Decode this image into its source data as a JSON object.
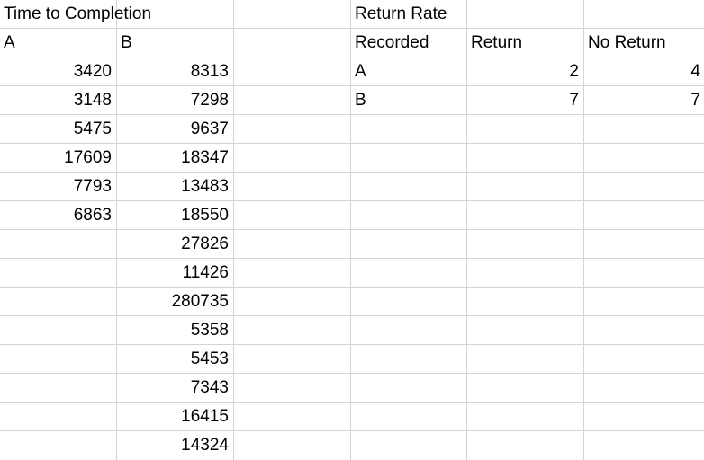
{
  "sheet": {
    "time": {
      "title": "Time to Completion",
      "col_a": "A",
      "col_b": "B",
      "a_values": [
        "3420",
        "3148",
        "5475",
        "17609",
        "7793",
        "6863"
      ],
      "b_values": [
        "8313",
        "7298",
        "9637",
        "18347",
        "13483",
        "18550",
        "27826",
        "11426",
        "280735",
        "5358",
        "5453",
        "7343",
        "16415",
        "14324"
      ]
    },
    "return_rate": {
      "title": "Return Rate",
      "headers": [
        "Recorded",
        "Return",
        "No Return"
      ],
      "rows": [
        {
          "recorded": "A",
          "return": "2",
          "no_return": "4"
        },
        {
          "recorded": "B",
          "return": "7",
          "no_return": "7"
        }
      ]
    }
  }
}
